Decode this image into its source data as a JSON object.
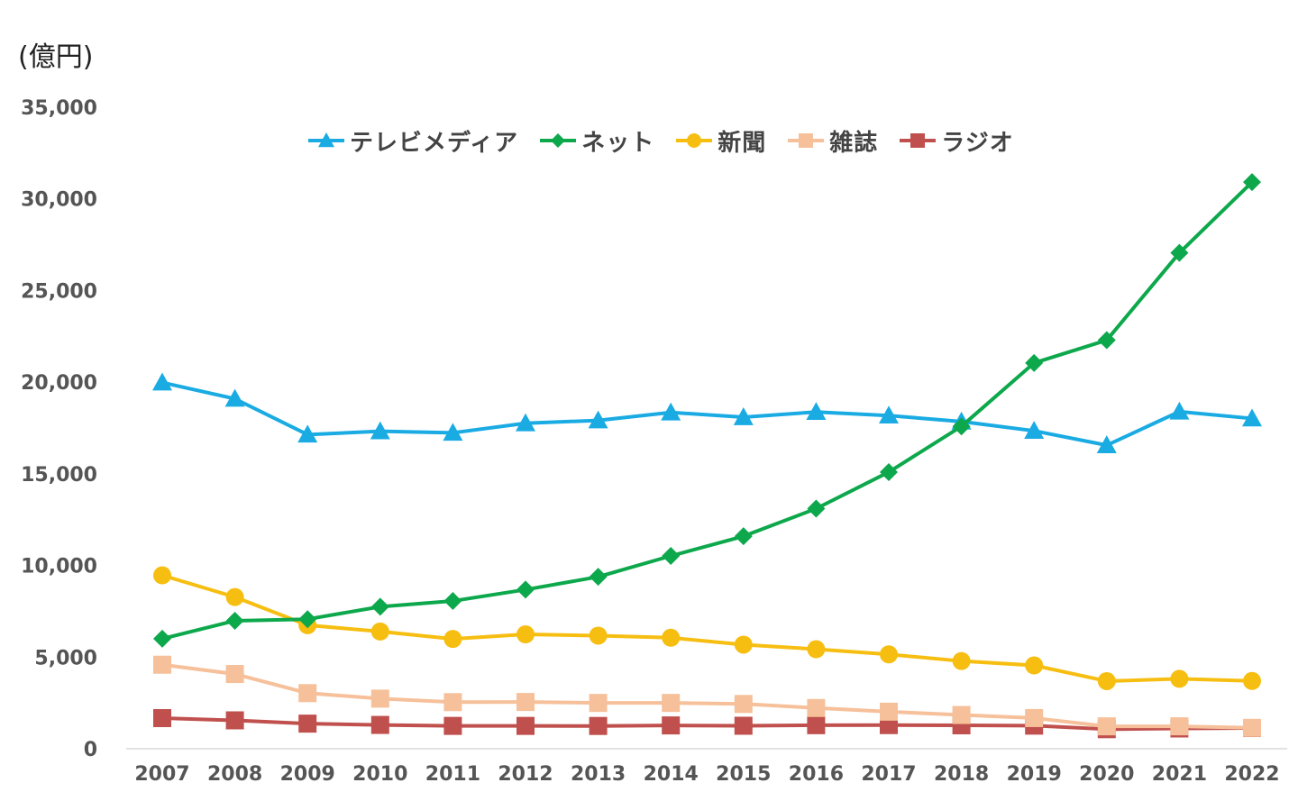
{
  "unit_label": "(億円)",
  "chart_data": {
    "type": "line",
    "title": "",
    "xlabel": "",
    "ylabel": "(億円)",
    "ylim": [
      0,
      35000
    ],
    "yticks": [
      0,
      5000,
      10000,
      15000,
      20000,
      25000,
      30000,
      35000
    ],
    "ytick_labels": [
      "0",
      "5,000",
      "10,000",
      "15,000",
      "20,000",
      "25,000",
      "30,000",
      "35,000"
    ],
    "categories": [
      "2007",
      "2008",
      "2009",
      "2010",
      "2011",
      "2012",
      "2013",
      "2014",
      "2015",
      "2016",
      "2017",
      "2018",
      "2019",
      "2020",
      "2021",
      "2022"
    ],
    "legend_position": "top-center",
    "grid": false,
    "series": [
      {
        "name": "テレビメディア",
        "color": "#1AABE3",
        "marker": "triangle",
        "values": [
          19981,
          19092,
          17139,
          17321,
          17237,
          17757,
          17913,
          18347,
          18088,
          18374,
          18178,
          17848,
          17345,
          16559,
          18393,
          18019
        ]
      },
      {
        "name": "ネット",
        "color": "#0DA84C",
        "marker": "diamond",
        "values": [
          6003,
          6983,
          7069,
          7747,
          8062,
          8680,
          9381,
          10519,
          11594,
          13100,
          15094,
          17589,
          21048,
          22290,
          27052,
          30912
        ]
      },
      {
        "name": "新聞",
        "color": "#F7BE12",
        "marker": "circle",
        "values": [
          9462,
          8276,
          6739,
          6396,
          5990,
          6242,
          6170,
          6057,
          5679,
          5431,
          5147,
          4784,
          4547,
          3688,
          3815,
          3697
        ]
      },
      {
        "name": "雑誌",
        "color": "#F6C09A",
        "marker": "square",
        "values": [
          4585,
          4078,
          3034,
          2733,
          2542,
          2551,
          2499,
          2500,
          2443,
          2223,
          2023,
          1841,
          1675,
          1223,
          1224,
          1140
        ]
      },
      {
        "name": "ラジオ",
        "color": "#C0504D",
        "marker": "square",
        "values": [
          1671,
          1549,
          1370,
          1299,
          1247,
          1246,
          1243,
          1272,
          1254,
          1285,
          1290,
          1278,
          1260,
          1066,
          1106,
          1129
        ]
      }
    ]
  }
}
